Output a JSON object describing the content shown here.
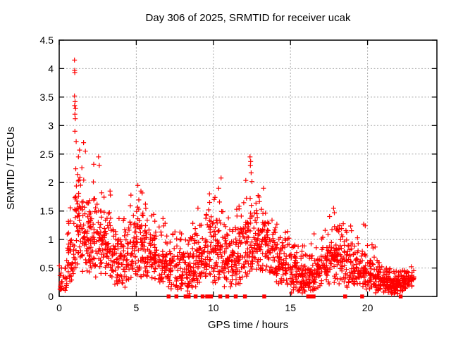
{
  "chart_data": {
    "type": "scatter",
    "title": "Day 306 of 2025, SRMTID for receiver ucak",
    "xlabel": "GPS time / hours",
    "ylabel": "SRMTID / TECUs",
    "xlim": [
      0,
      24.5
    ],
    "ylim": [
      0,
      4.5
    ],
    "xticks": [
      0,
      5,
      10,
      15,
      20
    ],
    "yticks": [
      0,
      0.5,
      1,
      1.5,
      2,
      2.5,
      3,
      3.5,
      4,
      4.5
    ],
    "grid": {
      "show": true,
      "color": "#a8a8a8",
      "style": "dashed",
      "dash": "2 2.5"
    },
    "background": "#ffffff",
    "border_color": "#000000",
    "marker_color": "#ff0000",
    "series": [
      {
        "name": "SRMTID",
        "marker": "plus",
        "color": "#ff0000",
        "density_profile": {
          "bin_width_hours": 0.5,
          "columns": [
            "start_hour",
            "min_tecu",
            "max_tecu",
            "count"
          ],
          "bins": [
            [
              0,
              0.08,
              0.7,
              28
            ],
            [
              0.5,
              0.2,
              1.9,
              42
            ],
            [
              1,
              0.5,
              2.45,
              55
            ],
            [
              1.5,
              0.4,
              2.3,
              52
            ],
            [
              2,
              0.3,
              2.1,
              48
            ],
            [
              2.5,
              0.35,
              2.0,
              46
            ],
            [
              3,
              0.3,
              1.8,
              46
            ],
            [
              3.5,
              0.15,
              1.6,
              44
            ],
            [
              4,
              0.15,
              1.5,
              42
            ],
            [
              4.5,
              0.25,
              1.85,
              46
            ],
            [
              5,
              0.3,
              1.9,
              48
            ],
            [
              5.5,
              0.25,
              1.7,
              44
            ],
            [
              6,
              0.25,
              1.5,
              44
            ],
            [
              6.5,
              0.2,
              1.4,
              42
            ],
            [
              7,
              0.1,
              1.3,
              40
            ],
            [
              7.5,
              0.08,
              1.35,
              40
            ],
            [
              8,
              0.05,
              1.2,
              44
            ],
            [
              8.5,
              0.1,
              1.3,
              48
            ],
            [
              9,
              0.2,
              1.4,
              44
            ],
            [
              9.5,
              0.2,
              1.8,
              44
            ],
            [
              10,
              0.2,
              1.9,
              48
            ],
            [
              10.5,
              0.15,
              1.6,
              48
            ],
            [
              11,
              0.1,
              1.5,
              44
            ],
            [
              11.5,
              0.2,
              1.85,
              44
            ],
            [
              12,
              0.3,
              2.1,
              48
            ],
            [
              12.5,
              0.4,
              2.0,
              48
            ],
            [
              13,
              0.4,
              1.85,
              44
            ],
            [
              13.5,
              0.3,
              1.6,
              44
            ],
            [
              14,
              0.2,
              1.45,
              44
            ],
            [
              14.5,
              0.2,
              1.25,
              40
            ],
            [
              15,
              0.05,
              1.1,
              48
            ],
            [
              15.5,
              0.05,
              0.95,
              50
            ],
            [
              16,
              0.05,
              1.0,
              44
            ],
            [
              16.5,
              0.1,
              1.25,
              40
            ],
            [
              17,
              0.15,
              1.25,
              40
            ],
            [
              17.5,
              0.2,
              1.5,
              44
            ],
            [
              18,
              0.2,
              1.35,
              44
            ],
            [
              18.5,
              0.15,
              1.3,
              40
            ],
            [
              19,
              0.1,
              1.2,
              40
            ],
            [
              19.5,
              0.1,
              1.0,
              40
            ],
            [
              20,
              0.1,
              0.95,
              40
            ],
            [
              20.5,
              0.05,
              0.7,
              44
            ],
            [
              21,
              0.04,
              0.55,
              50
            ],
            [
              21.5,
              0.03,
              0.5,
              54
            ],
            [
              22,
              0.08,
              0.55,
              48
            ],
            [
              22.5,
              0.15,
              0.6,
              36
            ]
          ]
        },
        "peak_points": [
          [
            0.99,
            4.15
          ],
          [
            1.0,
            3.97
          ],
          [
            1.01,
            3.93
          ],
          [
            0.99,
            3.52
          ],
          [
            1.03,
            3.42
          ],
          [
            1.0,
            3.35
          ],
          [
            1.06,
            3.3
          ],
          [
            1.02,
            3.2
          ],
          [
            1.04,
            3.12
          ],
          [
            1.02,
            2.9
          ],
          [
            1.1,
            2.72
          ],
          [
            1.32,
            2.57
          ],
          [
            1.58,
            2.7
          ],
          [
            1.7,
            2.55
          ],
          [
            1.25,
            2.45
          ],
          [
            2.24,
            2.32
          ],
          [
            2.55,
            2.45
          ],
          [
            2.6,
            2.3
          ],
          [
            3.3,
            1.85
          ],
          [
            5.1,
            1.95
          ],
          [
            5.3,
            1.85
          ],
          [
            9.0,
            1.55
          ],
          [
            9.75,
            1.8
          ],
          [
            10.35,
            1.9
          ],
          [
            10.5,
            2.08
          ],
          [
            12.38,
            2.45
          ],
          [
            12.42,
            2.37
          ],
          [
            12.4,
            2.3
          ],
          [
            12.45,
            2.17
          ],
          [
            12.5,
            2.02
          ],
          [
            13.25,
            1.9
          ],
          [
            17.8,
            1.55
          ],
          [
            17.85,
            1.47
          ],
          [
            19.35,
            1.03
          ],
          [
            19.75,
            1.27
          ],
          [
            19.85,
            1.24
          ]
        ]
      },
      {
        "name": "zero-value flags",
        "marker": "filled-square",
        "color": "#ff0000",
        "y": 0,
        "x_hours": [
          7.1,
          7.6,
          8.2,
          8.4,
          8.85,
          9.3,
          9.6,
          9.85,
          10.45,
          10.9,
          11.45,
          12.05,
          13.3,
          16.15,
          16.35,
          16.5,
          18.55,
          19.65,
          22.15
        ]
      }
    ]
  }
}
